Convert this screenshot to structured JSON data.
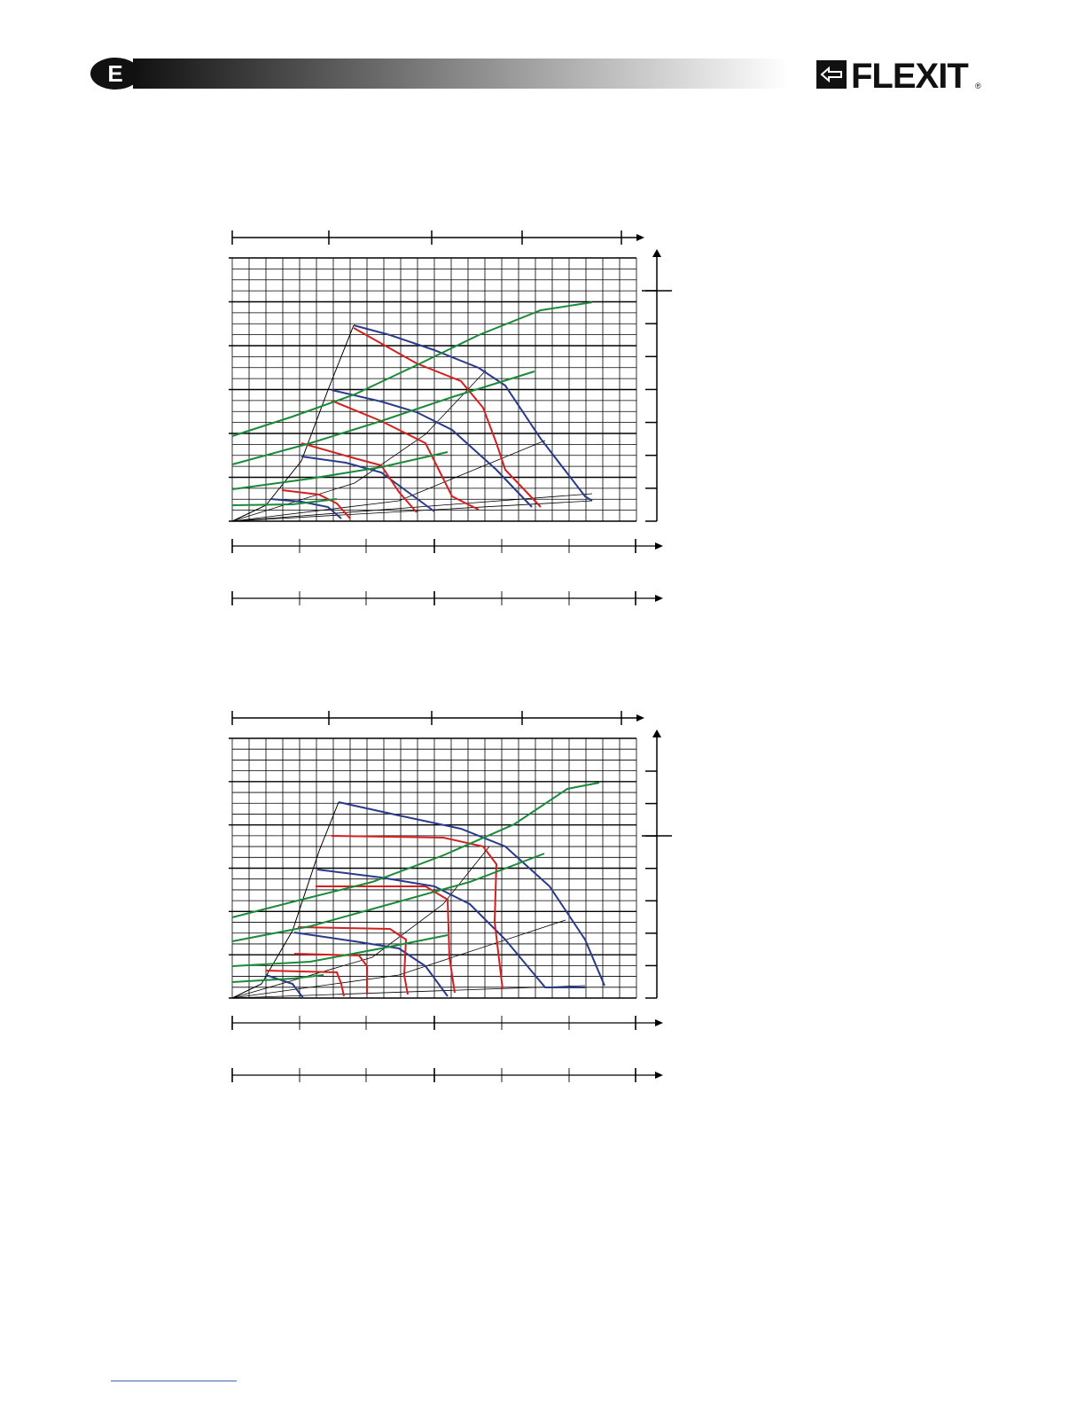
{
  "header": {
    "badge": "E",
    "logo": "FLEXIT",
    "mark": "®"
  }
}
